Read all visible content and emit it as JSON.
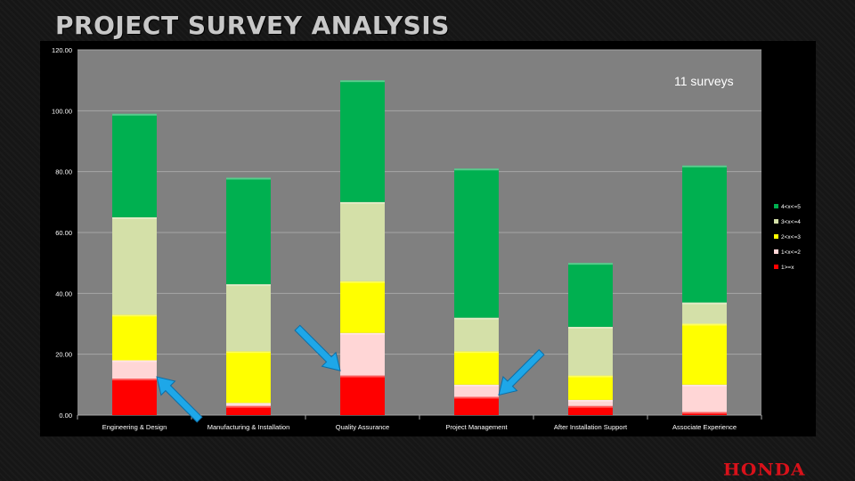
{
  "page": {
    "title": "PROJECT SURVEY ANALYSIS",
    "brand": "HONDA"
  },
  "annotation": "11 surveys",
  "colors": {
    "frame": "#000000",
    "plot_area": "#808080",
    "gridline": "#a6a6a6",
    "arrow": "#1ea7e8",
    "logo": "#d9111a"
  },
  "chart_data": {
    "type": "bar",
    "stacked": true,
    "ylim": [
      0,
      120
    ],
    "yticks": [
      "0.00",
      "20.00",
      "40.00",
      "60.00",
      "80.00",
      "100.00",
      "120.00"
    ],
    "grid": true,
    "legend_position": "right",
    "categories": [
      "Engineering & Design",
      "Manufacturing & Installation",
      "Quality Assurance",
      "Project Management",
      "After Installation Support",
      "Associate Experience"
    ],
    "series": [
      {
        "name": "1>=x",
        "color": "#ff0000",
        "values": [
          12,
          3,
          13,
          6,
          3,
          1
        ]
      },
      {
        "name": "1<x<=2",
        "color": "#ffd6d6",
        "values": [
          6,
          1,
          14,
          4,
          2,
          9
        ]
      },
      {
        "name": "2<x<=3",
        "color": "#ffff00",
        "values": [
          15,
          17,
          17,
          11,
          8,
          20
        ]
      },
      {
        "name": "3<x<=4",
        "color": "#d4e0a8",
        "values": [
          32,
          22,
          26,
          11,
          16,
          7
        ]
      },
      {
        "name": "4<x<=5",
        "color": "#00b050",
        "values": [
          34,
          35,
          40,
          49,
          21,
          45
        ]
      }
    ],
    "arrows": [
      {
        "tip": [
          "Engineering & Design",
          12
        ],
        "direction": "from-lower-right"
      },
      {
        "tip": [
          "Quality Assurance",
          14
        ],
        "direction": "from-upper-left"
      },
      {
        "tip": [
          "Project Management",
          6
        ],
        "direction": "from-upper-right"
      }
    ]
  }
}
